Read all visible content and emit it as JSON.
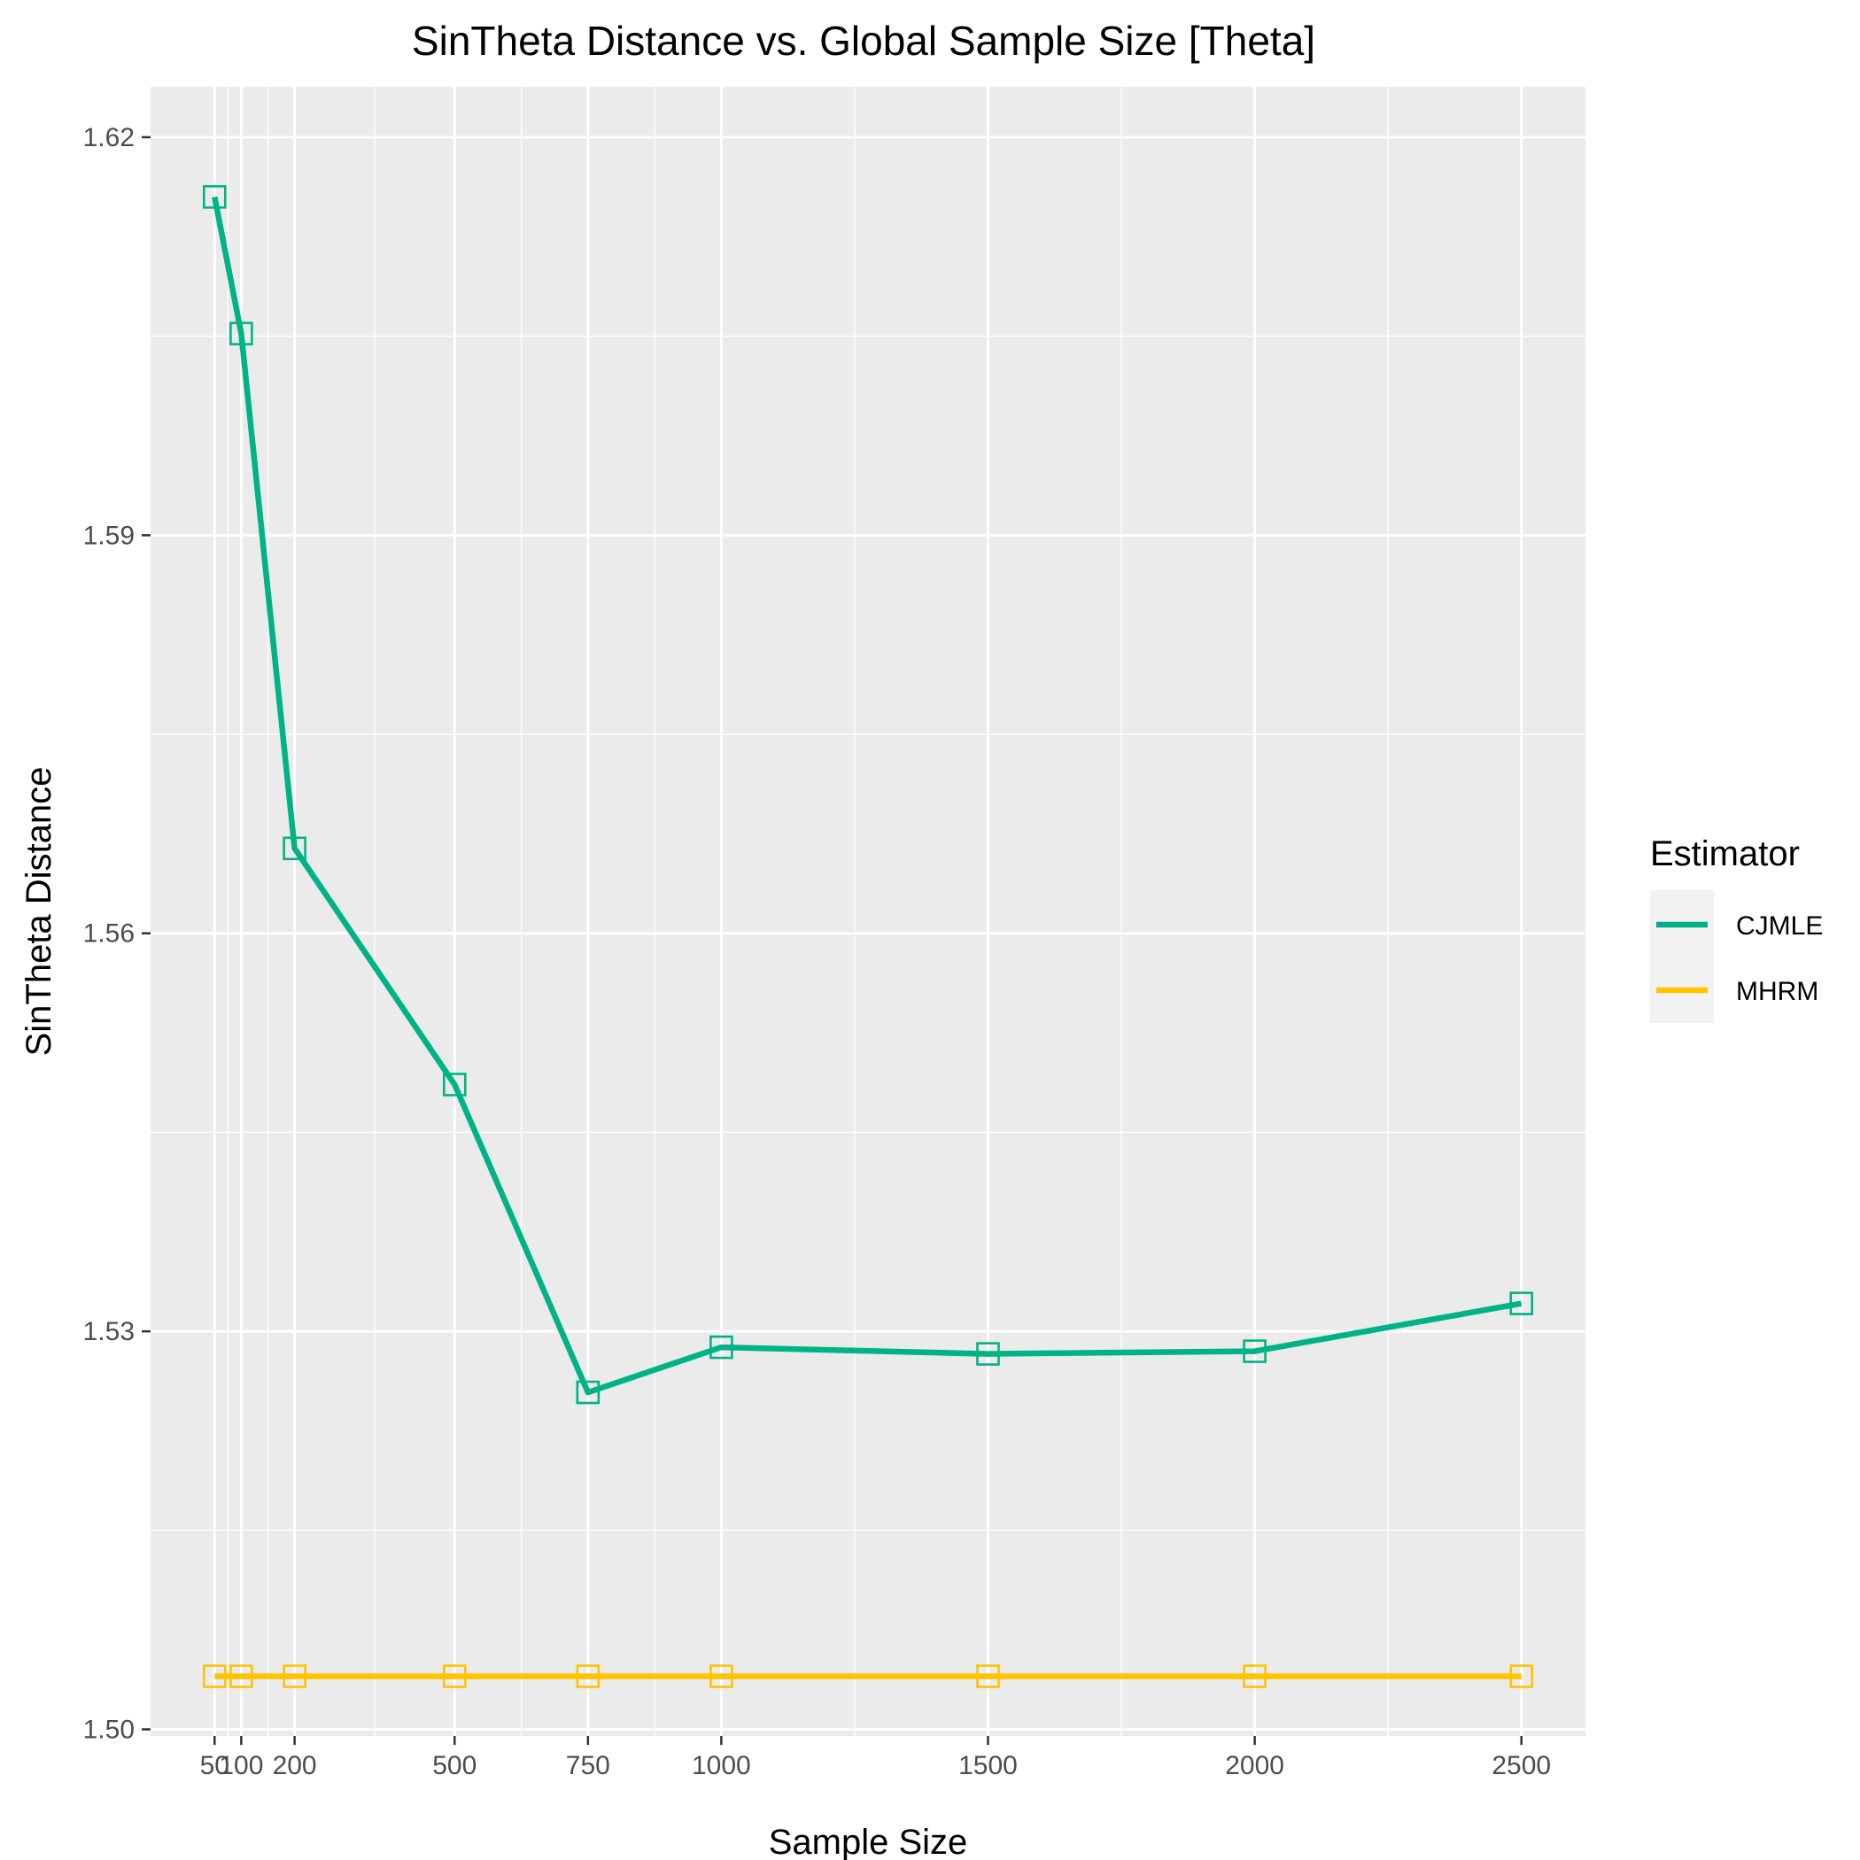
{
  "colors": {
    "panel": "#ebebeb",
    "grid": "#ffffff",
    "tick": "#333333",
    "legend_key_bg": "#f2f2f2"
  },
  "chart_data": {
    "type": "line",
    "title": "SinTheta Distance vs. Global Sample Size [Theta]",
    "xlabel": "Sample Size",
    "ylabel": "SinTheta Distance",
    "x": [
      50,
      100,
      200,
      500,
      750,
      1000,
      1500,
      2000,
      2500
    ],
    "x_tick_labels": [
      "50",
      "100",
      "200",
      "500",
      "750",
      "1000",
      "1500",
      "2000",
      "2500"
    ],
    "xlim": [
      -70,
      2620
    ],
    "ylim": [
      1.4995,
      1.6238
    ],
    "y_ticks": [
      1.5,
      1.53,
      1.56,
      1.59,
      1.62
    ],
    "y_tick_labels": [
      "1.50",
      "1.53",
      "1.56",
      "1.59",
      "1.62"
    ],
    "marker": "open-square",
    "grid": true,
    "legend": {
      "title": "Estimator",
      "position": "right"
    },
    "series": [
      {
        "name": "CJMLE",
        "color": "#00b386",
        "values": [
          1.6155,
          1.6052,
          1.5664,
          1.5486,
          1.5254,
          1.5288,
          1.5283,
          1.5285,
          1.5321
        ]
      },
      {
        "name": "MHRM",
        "color": "#ffc300",
        "values": [
          1.504,
          1.504,
          1.504,
          1.504,
          1.504,
          1.504,
          1.504,
          1.504,
          1.504
        ]
      }
    ]
  }
}
